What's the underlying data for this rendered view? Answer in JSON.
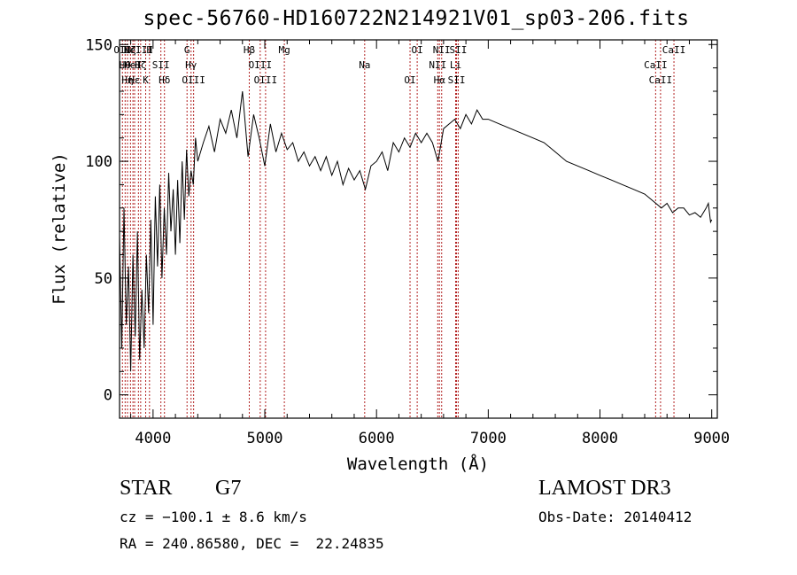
{
  "chart_data": {
    "type": "line",
    "title": "spec-56760-HD160722N214921V01_sp03-206.fits",
    "xlabel": "Wavelength (Å)",
    "ylabel": "Flux (relative)",
    "xlim": [
      3700,
      9050
    ],
    "ylim": [
      -10,
      152
    ],
    "xticks": [
      4000,
      5000,
      6000,
      7000,
      8000,
      9000
    ],
    "yticks": [
      0,
      50,
      100,
      150
    ],
    "grid": false,
    "series": [
      {
        "x": [
          3700,
          3720,
          3740,
          3760,
          3780,
          3800,
          3820,
          3840,
          3860,
          3880,
          3900,
          3920,
          3940,
          3960,
          3980,
          4000,
          4020,
          4040,
          4060,
          4080,
          4100,
          4120,
          4140,
          4160,
          4180,
          4200,
          4220,
          4240,
          4260,
          4280,
          4300,
          4320,
          4340,
          4360,
          4380,
          4400,
          4450,
          4500,
          4550,
          4600,
          4650,
          4700,
          4750,
          4800,
          4850,
          4900,
          4950,
          5000,
          5050,
          5100,
          5150,
          5200,
          5250,
          5300,
          5350,
          5400,
          5450,
          5500,
          5550,
          5600,
          5650,
          5700,
          5750,
          5800,
          5850,
          5900,
          5950,
          6000,
          6050,
          6100,
          6150,
          6200,
          6250,
          6300,
          6350,
          6400,
          6450,
          6500,
          6550,
          6600,
          6650,
          6700,
          6750,
          6800,
          6850,
          6900,
          6950,
          7000,
          7100,
          7200,
          7300,
          7400,
          7500,
          7600,
          7700,
          7800,
          7900,
          8000,
          8100,
          8200,
          8300,
          8400,
          8450,
          8500,
          8550,
          8600,
          8650,
          8700,
          8750,
          8800,
          8850,
          8900,
          8950,
          8970,
          8990,
          9000
        ],
        "values": [
          68,
          20,
          80,
          30,
          55,
          10,
          60,
          25,
          70,
          15,
          45,
          20,
          60,
          35,
          75,
          30,
          85,
          55,
          90,
          50,
          80,
          60,
          95,
          70,
          88,
          60,
          92,
          65,
          100,
          75,
          105,
          85,
          96,
          90,
          110,
          100,
          108,
          115,
          104,
          118,
          112,
          122,
          110,
          130,
          102,
          120,
          110,
          98,
          116,
          104,
          112,
          105,
          108,
          100,
          104,
          98,
          102,
          96,
          102,
          94,
          100,
          90,
          97,
          92,
          96,
          88,
          98,
          100,
          104,
          96,
          108,
          104,
          110,
          106,
          112,
          108,
          112,
          108,
          100,
          114,
          116,
          118,
          114,
          120,
          116,
          122,
          118,
          118,
          116,
          114,
          112,
          110,
          108,
          104,
          100,
          98,
          96,
          94,
          92,
          90,
          88,
          86,
          84,
          82,
          80,
          82,
          78,
          80,
          80,
          77,
          78,
          76,
          80,
          82,
          74,
          75
        ]
      }
    ],
    "lines": [
      {
        "x": 3726,
        "labels": [
          "OII"
        ]
      },
      {
        "x": 3750,
        "labels": [
          "Hθ"
        ]
      },
      {
        "x": 3771,
        "labels": [
          "Hη"
        ]
      },
      {
        "x": 3798,
        "labels": [
          "Hζ"
        ]
      },
      {
        "x": 3820,
        "labels": [
          "HeI"
        ]
      },
      {
        "x": 3835,
        "labels": [
          "Hε"
        ]
      },
      {
        "x": 3869,
        "labels": [
          "NeIII"
        ]
      },
      {
        "x": 3889,
        "labels": [
          "Hζ"
        ]
      },
      {
        "x": 3934,
        "labels": [
          "K"
        ]
      },
      {
        "x": 3968,
        "labels": [
          "H"
        ]
      },
      {
        "x": 4070,
        "labels": [
          "SII"
        ]
      },
      {
        "x": 4102,
        "labels": [
          "Hδ"
        ]
      },
      {
        "x": 4304,
        "labels": [
          "G"
        ]
      },
      {
        "x": 4340,
        "labels": [
          "Hγ"
        ]
      },
      {
        "x": 4363,
        "labels": [
          "OIII"
        ]
      },
      {
        "x": 4861,
        "labels": [
          "Hβ"
        ]
      },
      {
        "x": 4959,
        "labels": [
          "OIII"
        ]
      },
      {
        "x": 5007,
        "labels": [
          "OIII"
        ]
      },
      {
        "x": 5175,
        "labels": [
          "Mg"
        ]
      },
      {
        "x": 5894,
        "labels": [
          "Na"
        ]
      },
      {
        "x": 6300,
        "labels": [
          "OI"
        ]
      },
      {
        "x": 6364,
        "labels": [
          "OI"
        ]
      },
      {
        "x": 6548,
        "labels": [
          "NII"
        ]
      },
      {
        "x": 6563,
        "labels": [
          "Hα"
        ]
      },
      {
        "x": 6583,
        "labels": [
          "NII"
        ]
      },
      {
        "x": 6708,
        "labels": [
          "Li"
        ]
      },
      {
        "x": 6716,
        "labels": [
          "SII"
        ]
      },
      {
        "x": 6731,
        "labels": [
          "SII"
        ]
      },
      {
        "x": 8498,
        "labels": [
          "CaII"
        ]
      },
      {
        "x": 8542,
        "labels": [
          "CaII"
        ]
      },
      {
        "x": 8662,
        "labels": [
          "CaII"
        ]
      }
    ],
    "line_color": "#b22222"
  },
  "info": {
    "class": "STAR",
    "subclass": "G7",
    "cz": "cz = −100.1 ± 8.6 km/s",
    "coords": "RA = 240.86580, DEC =  22.24835",
    "survey": "LAMOST DR3",
    "obs_date": "Obs-Date: 20140412"
  }
}
